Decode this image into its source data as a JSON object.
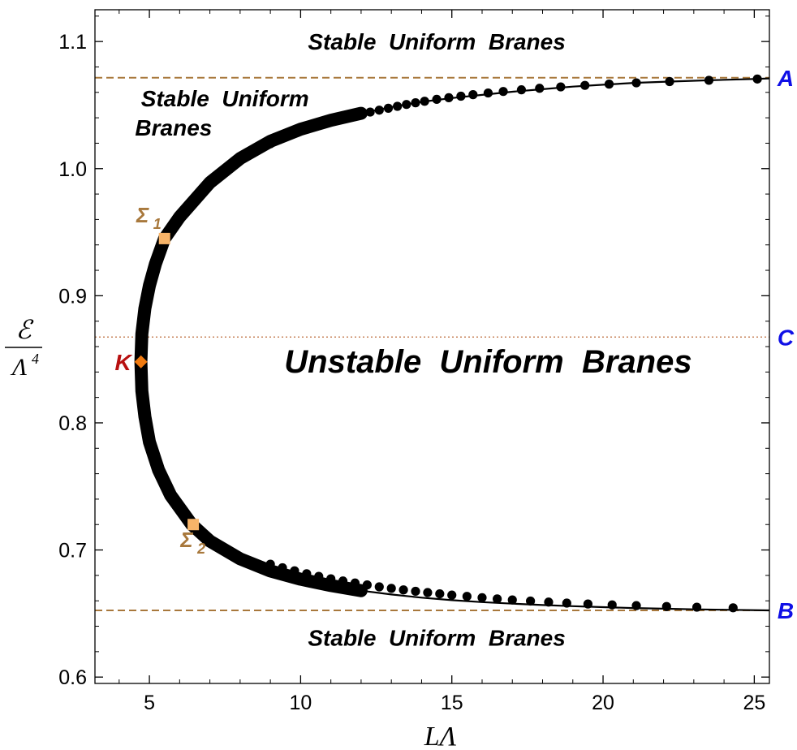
{
  "chart_data": {
    "type": "line",
    "xlabel": "LΛ",
    "ylabel": {
      "numerator": "ℰ",
      "denominator": "Λ",
      "exponent": "4"
    },
    "xlim": [
      3.2,
      25.5
    ],
    "ylim": [
      0.595,
      1.125
    ],
    "xticks": [
      5,
      10,
      15,
      20,
      25
    ],
    "yticks": [
      0.6,
      0.7,
      0.8,
      0.9,
      1.0,
      1.1
    ],
    "ytick_labels": [
      "0.6",
      "0.7",
      "0.8",
      "0.9",
      "1.0",
      "1.1"
    ],
    "grid": false,
    "series": [
      {
        "curve": "solid",
        "color": "#000000",
        "points": [
          [
            25.5,
            1.071
          ],
          [
            25.0,
            1.0705
          ],
          [
            23.5,
            1.0695
          ],
          [
            22.2,
            1.0685
          ],
          [
            21.1,
            1.0675
          ],
          [
            20.0,
            1.066
          ],
          [
            19.0,
            1.0645
          ],
          [
            18.0,
            1.0625
          ],
          [
            17.0,
            1.0605
          ],
          [
            16.0,
            1.058
          ],
          [
            15.0,
            1.0555
          ],
          [
            14.0,
            1.0525
          ],
          [
            13.0,
            1.0485
          ],
          [
            12.0,
            1.0435
          ],
          [
            11.0,
            1.038
          ],
          [
            10.0,
            1.031
          ],
          [
            9.0,
            1.0215
          ],
          [
            8.0,
            1.008
          ],
          [
            7.0,
            0.989
          ],
          [
            6.0,
            0.962
          ],
          [
            5.5,
            0.945
          ],
          [
            5.2,
            0.925
          ],
          [
            5.0,
            0.908
          ],
          [
            4.85,
            0.89
          ],
          [
            4.75,
            0.87
          ],
          [
            4.72,
            0.848
          ],
          [
            4.75,
            0.825
          ],
          [
            4.85,
            0.805
          ],
          [
            5.0,
            0.785
          ],
          [
            5.3,
            0.763
          ],
          [
            5.7,
            0.743
          ],
          [
            6.4,
            0.72
          ],
          [
            7.0,
            0.707
          ],
          [
            8.0,
            0.693
          ],
          [
            9.0,
            0.6835
          ],
          [
            10.0,
            0.677
          ],
          [
            11.0,
            0.672
          ],
          [
            12.0,
            0.668
          ],
          [
            13.0,
            0.665
          ],
          [
            14.0,
            0.6625
          ],
          [
            15.0,
            0.6605
          ],
          [
            16.0,
            0.659
          ],
          [
            17.0,
            0.6578
          ],
          [
            18.0,
            0.6567
          ],
          [
            19.0,
            0.6558
          ],
          [
            20.0,
            0.655
          ],
          [
            21.0,
            0.6543
          ],
          [
            22.0,
            0.6538
          ],
          [
            23.0,
            0.6533
          ],
          [
            24.0,
            0.653
          ],
          [
            25.5,
            0.6525
          ]
        ]
      },
      {
        "markers": "dots",
        "color": "#000000",
        "points": [
          [
            25.1,
            1.0705
          ],
          [
            23.5,
            1.0695
          ],
          [
            22.2,
            1.0685
          ],
          [
            21.1,
            1.0675
          ],
          [
            20.2,
            1.0665
          ],
          [
            19.4,
            1.0655
          ],
          [
            18.6,
            1.0643
          ],
          [
            17.9,
            1.0632
          ],
          [
            17.3,
            1.062
          ],
          [
            16.7,
            1.0607
          ],
          [
            16.2,
            1.0595
          ],
          [
            15.7,
            1.0582
          ],
          [
            15.3,
            1.057
          ],
          [
            14.9,
            1.0558
          ],
          [
            14.5,
            1.0545
          ],
          [
            14.1,
            1.053
          ],
          [
            13.8,
            1.0518
          ],
          [
            13.5,
            1.0505
          ],
          [
            13.2,
            1.049
          ],
          [
            12.9,
            1.0475
          ],
          [
            12.6,
            1.046
          ],
          [
            12.3,
            1.0445
          ],
          [
            12.0,
            1.043
          ],
          [
            11.7,
            1.0412
          ],
          [
            11.4,
            1.0395
          ],
          [
            11.1,
            1.0375
          ],
          [
            10.8,
            1.0355
          ],
          [
            10.5,
            1.0335
          ],
          [
            10.2,
            1.031
          ],
          [
            9.9,
            1.0285
          ],
          [
            9.6,
            1.0258
          ],
          [
            9.3,
            1.0228
          ],
          [
            9.0,
            1.0195
          ],
          [
            24.3,
            0.6545
          ],
          [
            23.1,
            0.655
          ],
          [
            22.1,
            0.6555
          ],
          [
            21.1,
            0.6562
          ],
          [
            20.3,
            0.6568
          ],
          [
            19.5,
            0.6575
          ],
          [
            18.8,
            0.6582
          ],
          [
            18.2,
            0.659
          ],
          [
            17.6,
            0.6598
          ],
          [
            17.0,
            0.6607
          ],
          [
            16.5,
            0.6615
          ],
          [
            16.0,
            0.6625
          ],
          [
            15.5,
            0.6635
          ],
          [
            15.0,
            0.6645
          ],
          [
            14.6,
            0.6655
          ],
          [
            14.2,
            0.6665
          ],
          [
            13.8,
            0.6675
          ],
          [
            13.4,
            0.6686
          ],
          [
            13.0,
            0.6698
          ],
          [
            12.6,
            0.671
          ],
          [
            12.2,
            0.6725
          ],
          [
            11.8,
            0.674
          ],
          [
            11.4,
            0.6756
          ],
          [
            11.0,
            0.6773
          ],
          [
            10.6,
            0.6792
          ],
          [
            10.2,
            0.6813
          ],
          [
            9.8,
            0.6836
          ],
          [
            9.4,
            0.686
          ],
          [
            9.0,
            0.6888
          ]
        ]
      }
    ],
    "reference_lines": [
      {
        "label": "A",
        "y": 1.0715,
        "style": "dashed",
        "color": "#a8783c",
        "label_color": "#1010e6"
      },
      {
        "label": "C",
        "y": 0.8675,
        "style": "dotted",
        "color": "#c8845c",
        "label_color": "#1010e6"
      },
      {
        "label": "B",
        "y": 0.6525,
        "style": "dashed",
        "color": "#a8783c",
        "label_color": "#1010e6"
      }
    ],
    "special_points": [
      {
        "label": "K",
        "x": 4.72,
        "y": 0.848,
        "marker": "diamond",
        "color": "#f07a10",
        "label_color": "#b81010"
      },
      {
        "label": "Σ",
        "subscript": "1",
        "x": 5.5,
        "y": 0.945,
        "marker": "square",
        "color": "#f7b469",
        "label_color": "#a8783c"
      },
      {
        "label": "Σ",
        "subscript": "2",
        "x": 6.45,
        "y": 0.72,
        "marker": "square",
        "color": "#f7b469",
        "label_color": "#a8783c"
      }
    ],
    "annotations": [
      {
        "text": "Stable  Uniform  Branes",
        "x": 14.5,
        "y": 1.1,
        "size": "medium"
      },
      {
        "text": "Stable  Uniform",
        "x": 7.5,
        "y": 1.0555,
        "size": "medium"
      },
      {
        "text": "Branes",
        "x": 5.8,
        "y": 1.0325,
        "size": "medium"
      },
      {
        "text": "Unstable  Uniform  Branes",
        "x": 16.2,
        "y": 0.848,
        "size": "large"
      },
      {
        "text": "Stable  Uniform  Branes",
        "x": 14.5,
        "y": 0.631,
        "size": "medium"
      }
    ]
  }
}
